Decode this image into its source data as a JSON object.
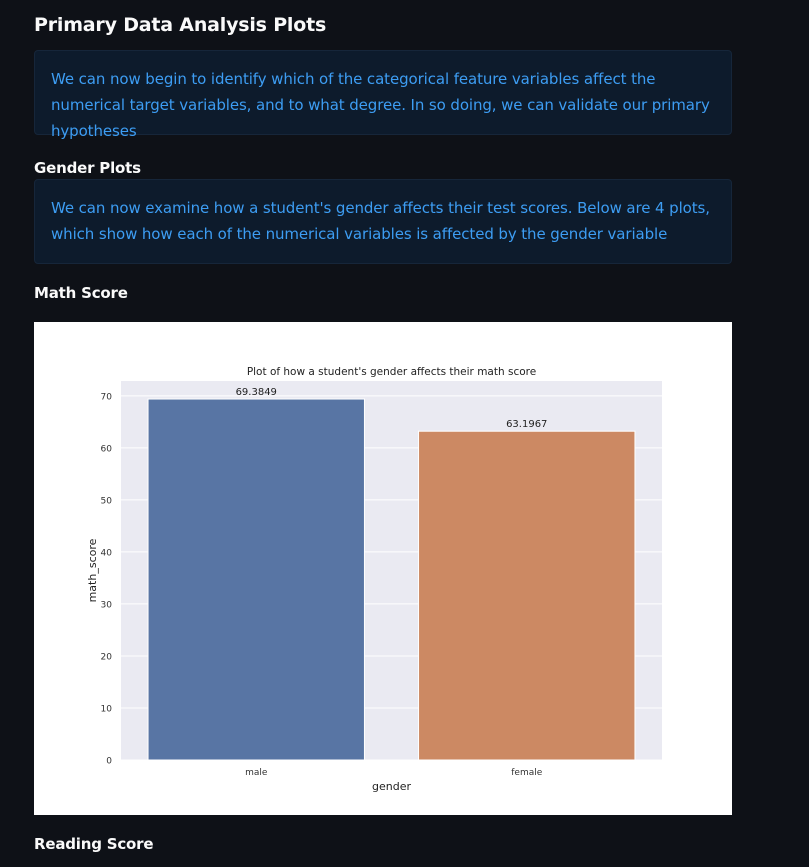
{
  "header": {
    "title": "Primary Data Analysis Plots"
  },
  "intro": {
    "text": "We can now begin to identify which of the categorical feature variables affect the numerical target variables, and to what degree. In so doing, we can validate our primary hypotheses"
  },
  "gender_section": {
    "title": "Gender Plots",
    "text": "We can now examine how a student's gender affects their test scores. Below are 4 plots, which show how each of the numerical variables is affected by the gender variable"
  },
  "math_section": {
    "title": "Math Score"
  },
  "reading_section": {
    "title": "Reading Score"
  },
  "colors": {
    "male": "#5875a4",
    "female": "#cc8963",
    "plot_bg": "#eaeaf2"
  },
  "chart_data": {
    "type": "bar",
    "title": "Plot of how a student's gender affects their math score",
    "xlabel": "gender",
    "ylabel": "math_score",
    "categories": [
      "male",
      "female"
    ],
    "values": [
      69.3849,
      63.1967
    ],
    "value_labels": [
      "69.3849",
      "63.1967"
    ],
    "ylim": [
      0,
      72.85
    ],
    "yticks": [
      0,
      10,
      20,
      30,
      40,
      50,
      60,
      70
    ],
    "grid": true,
    "legend": "none"
  }
}
